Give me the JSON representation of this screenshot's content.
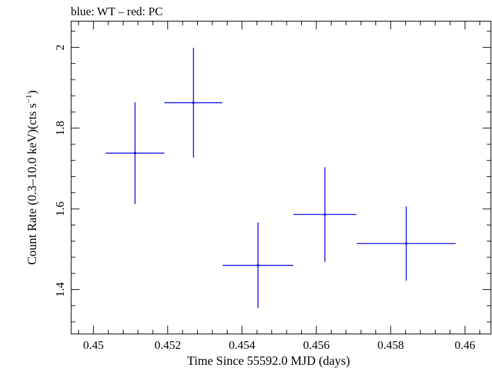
{
  "chart_data": {
    "type": "scatter",
    "title": "blue: WT – red: PC",
    "xlabel": "Time Since 55592.0 MJD (days)",
    "ylabel_main": "Count Rate (0.3–10.0 keV)(cts s",
    "ylabel_sup": "−1",
    "ylabel_end": ")",
    "xlim": [
      0.4494,
      0.4607
    ],
    "ylim": [
      1.29,
      2.065
    ],
    "x_ticks": [
      {
        "value": 0.45,
        "label": "0.45"
      },
      {
        "value": 0.452,
        "label": "0.452"
      },
      {
        "value": 0.454,
        "label": "0.454"
      },
      {
        "value": 0.456,
        "label": "0.456"
      },
      {
        "value": 0.458,
        "label": "0.458"
      },
      {
        "value": 0.46,
        "label": "0.46"
      }
    ],
    "x_minor_step": 0.0004,
    "y_ticks": [
      {
        "value": 1.4,
        "label": "1.4"
      },
      {
        "value": 1.6,
        "label": "1.6"
      },
      {
        "value": 1.8,
        "label": "1.8"
      },
      {
        "value": 2.0,
        "label": "2"
      }
    ],
    "y_minor_step": 0.04,
    "series": [
      {
        "color": "#0000e0",
        "points": [
          {
            "x": 0.45112,
            "xerr": 0.00079,
            "y": 1.738,
            "yerr": 0.126
          },
          {
            "x": 0.45269,
            "xerr": 0.00078,
            "y": 1.863,
            "yerr": 0.136
          },
          {
            "x": 0.45443,
            "xerr": 0.00095,
            "y": 1.46,
            "yerr": 0.106
          },
          {
            "x": 0.45623,
            "xerr": 0.00085,
            "y": 1.586,
            "yerr": 0.117
          },
          {
            "x": 0.45842,
            "xerr": 0.00133,
            "y": 1.514,
            "yerr": 0.092
          }
        ]
      }
    ]
  }
}
